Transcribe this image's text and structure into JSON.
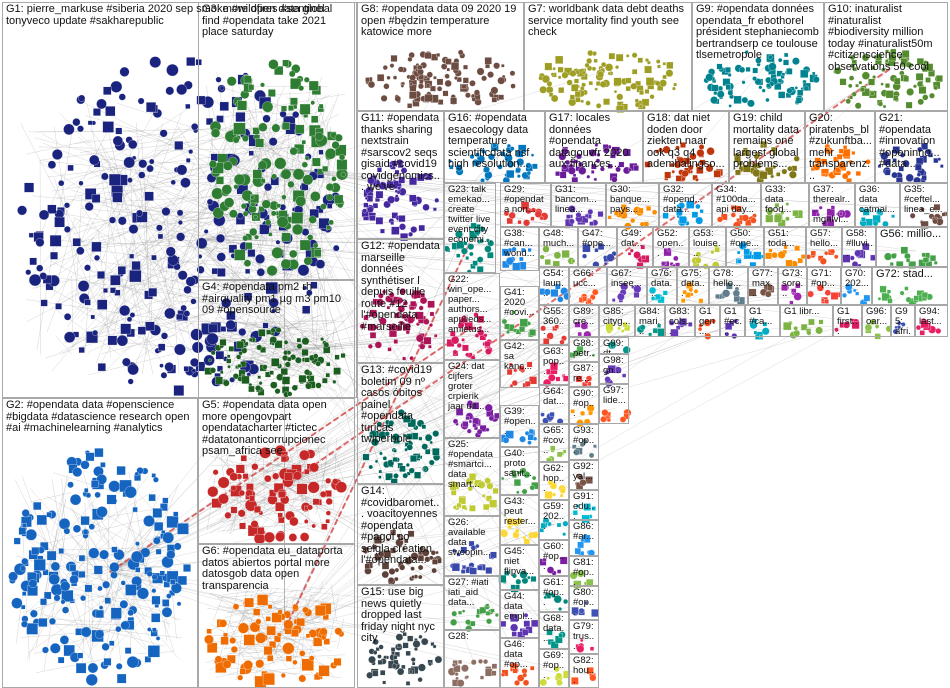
{
  "title": "",
  "groups": [
    {
      "id": "G1",
      "label": "G1: pierre_markuse #siberia 2020 sep smoke #wildfires #sentinel tonyveco update #sakharepublic",
      "color": "#1a237e"
    },
    {
      "id": "G2",
      "label": "G2: #opendata data #openscience #bigdata #datascience research open #ai #machinelearning #analytics",
      "color": "#1565c0"
    },
    {
      "id": "G3",
      "label": "G3: more open data global find #opendata take 2021 place saturday",
      "color": "#2e7d32"
    },
    {
      "id": "G4",
      "label": "G4: #opendata pm2 rh #airquality pm1 µg m3 pm10 09 #opensource",
      "color": "#1b5e20"
    },
    {
      "id": "G5",
      "label": "G5: #opendata data open more opengovpart opendatacharter #tictec #datatonanticorrupcionec psam_africa see",
      "color": "#c62828"
    },
    {
      "id": "G6",
      "label": "G6: #opendata eu_dataporta datos abiertos portal more datosgob data open transparencia",
      "color": "#ef6c00"
    },
    {
      "id": "G7",
      "label": "G7: worldbank data debt deaths service mortality find youth see check",
      "color": "#9e9d24"
    },
    {
      "id": "G8",
      "label": "G8: #opendata data 09 2020 19 open #będzin temperature katowice more",
      "color": "#6d4c41"
    },
    {
      "id": "G9",
      "label": "G9: #opendata données opendata_fr ebothorel président stephaniecomb bertrandserp ce toulouse tlsemetropole",
      "color": "#00838f"
    },
    {
      "id": "G10",
      "label": "G10: inaturalist #inaturalist #biodiversity million today #inaturalist50m #citizenscience observations 50 cool",
      "color": "#558b2f"
    },
    {
      "id": "G11",
      "label": "G11: #opendata thanks sharing nextstrain #sarscov2 seqs gisaid #covid19 covidgenomics... we've",
      "color": "#4527a0"
    },
    {
      "id": "G12",
      "label": "G12: #opendata marseille données synthétiser l depuis feuille route #12 l'#opendata #marseille",
      "color": "#ad1457"
    },
    {
      "id": "G13",
      "label": "G13: #covid19 boletim 09 nº casos óbitos painel #opendata turicas twiperbole",
      "color": "#00695c"
    },
    {
      "id": "G14",
      "label": "G14: #covidbaromet... voacitoyennes #opendata #pagof co seigla création l'#opendata...",
      "color": "#5d4037"
    },
    {
      "id": "G15",
      "label": "G15: use big news quietly dropped last friday night nyc city",
      "color": "#37474f"
    },
    {
      "id": "G16",
      "label": "G16: #opendata esaecology data temperature scientificdata nsf high resolution...",
      "color": "#0277bd"
    },
    {
      "id": "G17",
      "label": "G17: locales données #opendata datagouvfr 2020 aux finances...",
      "color": "#6a1b9a"
    },
    {
      "id": "G18",
      "label": "G18: dat niet doden door ziekten naar ook q3 q4 ademhalingso...",
      "color": "#bf360c"
    },
    {
      "id": "G19",
      "label": "G19: child mortality data remains one largest global problems...",
      "color": "#827717"
    },
    {
      "id": "G20",
      "label": "G20: piratenbs_bl #zukunftba... mehr transparenz...",
      "color": "#ff6f00"
    },
    {
      "id": "G21",
      "label": "G21: #opendata #innovation #openinno... #data...",
      "color": "#283593"
    },
    {
      "id": "G22",
      "label": "G22: win_ope... paper... authors... applieds... amietus...",
      "color": "#d81b60"
    },
    {
      "id": "G23",
      "label": "G23: talk emekao... create twitter live event city economi...",
      "color": "#00897b"
    },
    {
      "id": "G24",
      "label": "G24: dat cijfers groter crpierik jaar uit...",
      "color": "#7b1fa2"
    },
    {
      "id": "G25",
      "label": "G25: #opendata #smartci... data smart...",
      "color": "#c0ca33"
    },
    {
      "id": "G26",
      "label": "G26: available data swoopin...",
      "color": "#3949ab"
    },
    {
      "id": "G27",
      "label": "G27: #iati iati_aid data...",
      "color": "#43a047"
    },
    {
      "id": "G28",
      "label": "G28:",
      "color": "#8d6e63"
    },
    {
      "id": "G29",
      "label": "G29: #opendata non...",
      "color": "#e53935"
    },
    {
      "id": "G30",
      "label": "G30: banque... pays...",
      "color": "#fb8c00"
    },
    {
      "id": "G31",
      "label": "G31: bancom... linea...",
      "color": "#5e35b1"
    },
    {
      "id": "G32",
      "label": "G32: #opend... data...",
      "color": "#039be5"
    },
    {
      "id": "G33",
      "label": "G33: data food...",
      "color": "#7cb342"
    },
    {
      "id": "G34",
      "label": "G34: #100da... api day...",
      "color": "#f4511e"
    },
    {
      "id": "G35",
      "label": "G35: #ceftel... linea_e...",
      "color": "#6d4c41"
    },
    {
      "id": "G36",
      "label": "G36: data catmai...",
      "color": "#00acc1"
    },
    {
      "id": "G37",
      "label": "G37: therealr... mgalvi...",
      "color": "#8e24aa"
    },
    {
      "id": "G38",
      "label": "G38: #can... wond...",
      "color": "#1e88e5"
    },
    {
      "id": "G41",
      "label": "G41: 2020 #covi...",
      "color": "#43a047"
    },
    {
      "id": "G42",
      "label": "G42: sa kanc...",
      "color": "#e53935"
    },
    {
      "id": "G43",
      "label": "G43: peut rester...",
      "color": "#fdd835"
    },
    {
      "id": "G44",
      "label": "G44: data empl...",
      "color": "#5e35b1"
    },
    {
      "id": "G45",
      "label": "G45: niet flipva...",
      "color": "#00897b"
    },
    {
      "id": "G46",
      "label": "G46: data #op...",
      "color": "#f4511e"
    },
    {
      "id": "G47",
      "label": "G47: #ope...",
      "color": "#3949ab"
    },
    {
      "id": "G48",
      "label": "G48: much...",
      "color": "#7cb342"
    },
    {
      "id": "G49",
      "label": "G49: dat...",
      "color": "#d81b60"
    },
    {
      "id": "G50",
      "label": "G50: #ope...",
      "color": "#039be5"
    },
    {
      "id": "G51",
      "label": "G51: toda...",
      "color": "#fb8c00"
    },
    {
      "id": "G52",
      "label": "G52: open...",
      "color": "#8e24aa"
    },
    {
      "id": "G53",
      "label": "G53: louise...",
      "color": "#c0ca33"
    },
    {
      "id": "G54",
      "label": "G54: laun...",
      "color": "#1e88e5"
    },
    {
      "id": "G55",
      "label": "G55: 360...",
      "color": "#e53935"
    },
    {
      "id": "G56",
      "label": "G56: millio...",
      "color": "#43a047"
    },
    {
      "id": "G57",
      "label": "G57: hello...",
      "color": "#f4511e"
    },
    {
      "id": "G58",
      "label": "G58: #lluvi...",
      "color": "#5e35b1"
    },
    {
      "id": "G59",
      "label": "G59: 202...",
      "color": "#00acc1"
    },
    {
      "id": "G60",
      "label": "G60: #op...",
      "color": "#7b1fa2"
    },
    {
      "id": "G61",
      "label": "G61: #op...",
      "color": "#00897b"
    },
    {
      "id": "G62",
      "label": "G62: hop...",
      "color": "#fdd835"
    },
    {
      "id": "G63",
      "label": "G63: pop...",
      "color": "#e91e63"
    },
    {
      "id": "G64",
      "label": "G64: dat...",
      "color": "#3f51b5"
    },
    {
      "id": "G65",
      "label": "G65: #cov...",
      "color": "#8bc34a"
    },
    {
      "id": "G66",
      "label": "G66: ucc...",
      "color": "#ff5722"
    },
    {
      "id": "G67",
      "label": "G67: insee...",
      "color": "#673ab7"
    },
    {
      "id": "G68",
      "label": "G68: data...",
      "color": "#009688"
    },
    {
      "id": "G69",
      "label": "G69: #op...",
      "color": "#cddc39"
    },
    {
      "id": "G70",
      "label": "G70: 202...",
      "color": "#2196f3"
    },
    {
      "id": "G71",
      "label": "G71: #op...",
      "color": "#f44336"
    },
    {
      "id": "G72",
      "label": "G72: stad...",
      "color": "#4caf50"
    },
    {
      "id": "G73",
      "label": "G73: soro...",
      "color": "#9c27b0"
    },
    {
      "id": "G75",
      "label": "G75: data...",
      "color": "#ff9800"
    },
    {
      "id": "G76",
      "label": "G76: data...",
      "color": "#00bcd4"
    },
    {
      "id": "G77",
      "label": "G77: max...",
      "color": "#795548"
    },
    {
      "id": "G78",
      "label": "G78: hello...",
      "color": "#607d8b"
    },
    {
      "id": "G79",
      "label": "G79: trus...",
      "color": "#e91e63"
    },
    {
      "id": "G80",
      "label": "G80: #op...",
      "color": "#3f51b5"
    },
    {
      "id": "G81",
      "label": "G81: #op...",
      "color": "#8bc34a"
    },
    {
      "id": "G82",
      "label": "G82: hou...",
      "color": "#ff5722"
    },
    {
      "id": "G83",
      "label": "G83: cols...",
      "color": "#673ab7"
    },
    {
      "id": "G84",
      "label": "G84: mari...",
      "color": "#009688"
    },
    {
      "id": "G85",
      "label": "G85: cityg...",
      "color": "#cddc39"
    },
    {
      "id": "G86",
      "label": "G86: #ar...",
      "color": "#2196f3"
    },
    {
      "id": "G87",
      "label": "G87: re...",
      "color": "#f44336"
    },
    {
      "id": "G88",
      "label": "G88: petr...",
      "color": "#4caf50"
    },
    {
      "id": "G89",
      "label": "G89: cre...",
      "color": "#9c27b0"
    },
    {
      "id": "G90",
      "label": "G90: #op...",
      "color": "#ff9800"
    },
    {
      "id": "G91",
      "label": "G91: edu...",
      "color": "#00bcd4"
    },
    {
      "id": "G92",
      "label": "G92: yal...",
      "color": "#795548"
    },
    {
      "id": "G93",
      "label": "G93: #op...",
      "color": "#607d8b"
    },
    {
      "id": "G94",
      "label": "G94: last...",
      "color": "#e91e63"
    },
    {
      "id": "G95",
      "label": "G95: afri...",
      "color": "#3f51b5"
    },
    {
      "id": "G96",
      "label": "G96: oar...",
      "color": "#8bc34a"
    },
    {
      "id": "G97",
      "label": "G97: lide...",
      "color": "#ff5722"
    },
    {
      "id": "G98",
      "label": "G98: gn...",
      "color": "#673ab7"
    },
    {
      "id": "G99",
      "label": "G99: dt...",
      "color": "#009688"
    },
    {
      "id": "G39",
      "label": "G39: #open...",
      "color": "#1e88e5"
    },
    {
      "id": "G40",
      "label": "G40: proto sanit...",
      "color": "#43a047"
    },
    {
      "id": "Gs1",
      "label": "G1 gen...",
      "color": "#f4511e"
    },
    {
      "id": "Gs2",
      "label": "G1 #ec...",
      "color": "#5e35b1"
    },
    {
      "id": "Gs3",
      "label": "G1 #ca...",
      "color": "#00acc1"
    },
    {
      "id": "Gs4",
      "label": "G1 libr...",
      "color": "#7cb342"
    },
    {
      "id": "Gs5",
      "label": "G1 first...",
      "color": "#d81b60"
    }
  ]
}
